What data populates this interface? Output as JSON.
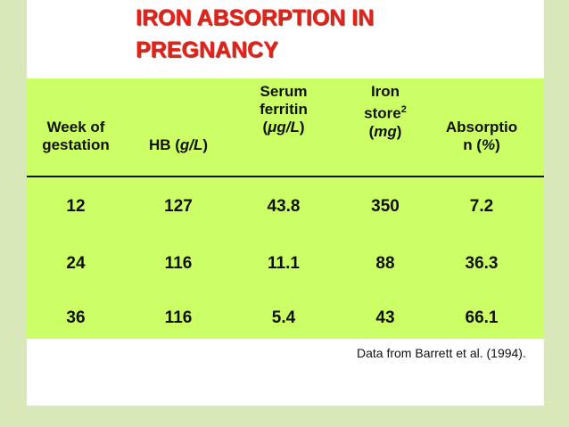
{
  "title": [
    "IRON ABSORPTION IN",
    "PREGNANCY"
  ],
  "table": {
    "header": [
      [
        [
          "Week of"
        ],
        [
          "gestation"
        ]
      ],
      [
        [
          "HB (",
          "g/L",
          ")"
        ]
      ],
      [
        [
          "Serum"
        ],
        [
          "ferritin"
        ],
        [
          "(",
          "μg/L",
          ")"
        ]
      ],
      [
        [
          "Iron"
        ],
        [
          "store",
          "2"
        ],
        [
          "(",
          "mg",
          ")"
        ]
      ],
      [
        [
          "Absorptio"
        ],
        [
          "n (",
          "%",
          ")"
        ]
      ]
    ],
    "rows": [
      [
        "12",
        "127",
        "43.8",
        "350",
        "7.2"
      ],
      [
        "24",
        "116",
        "11.1",
        "88",
        "36.3"
      ],
      [
        "36",
        "116",
        "5.4",
        "43",
        "66.1"
      ]
    ]
  },
  "note": "Data from Barrett et al. (1994)."
}
